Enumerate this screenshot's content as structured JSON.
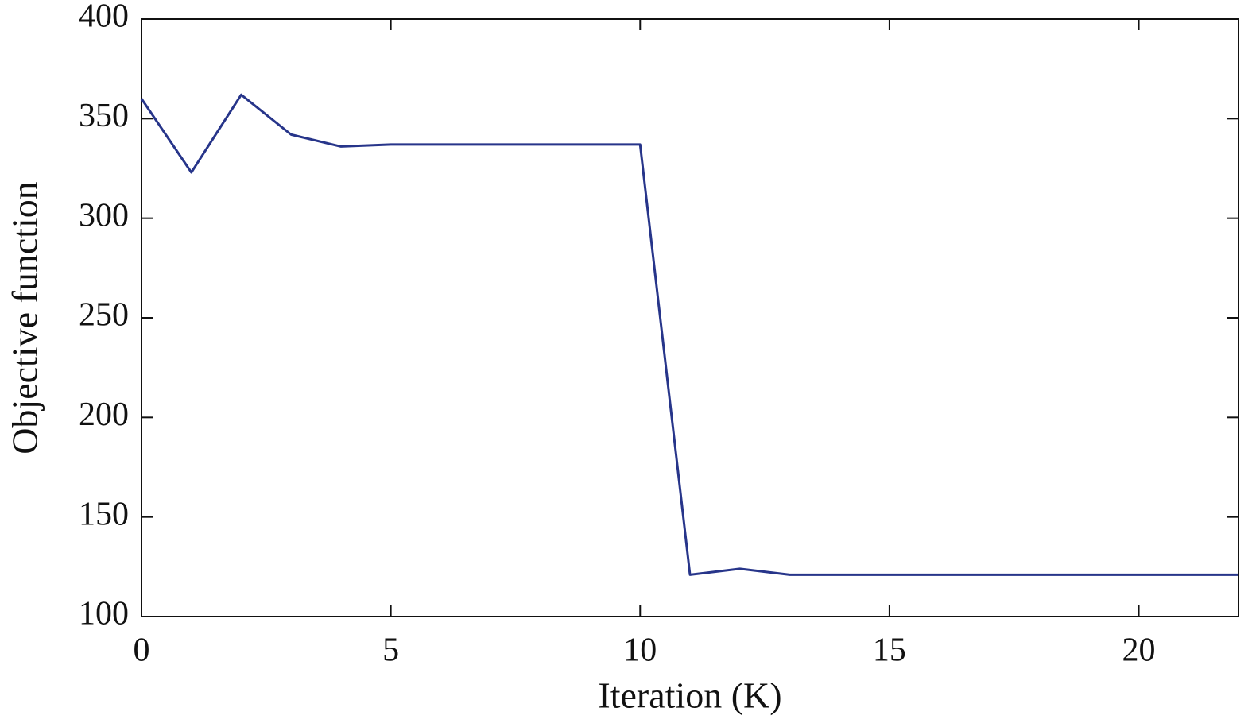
{
  "chart_data": {
    "type": "line",
    "x_label": "Iteration (K)",
    "y_label": "Objective function",
    "x": [
      0,
      1,
      2,
      3,
      4,
      5,
      6,
      7,
      8,
      9,
      10,
      11,
      12,
      13,
      14,
      15,
      16,
      17,
      18,
      19,
      20,
      21,
      22
    ],
    "series": [
      {
        "name": "Objective function",
        "color": "#27358a",
        "values": [
          360,
          323,
          362,
          342,
          336,
          337,
          337,
          337,
          337,
          337,
          337,
          121,
          124,
          121,
          121,
          121,
          121,
          121,
          121,
          121,
          121,
          121,
          121
        ]
      }
    ],
    "xlim": [
      0,
      22
    ],
    "xticks": [
      0,
      5,
      10,
      15,
      20
    ],
    "ylim": [
      100,
      400
    ],
    "yticks": [
      100,
      150,
      200,
      250,
      300,
      350,
      400
    ]
  }
}
